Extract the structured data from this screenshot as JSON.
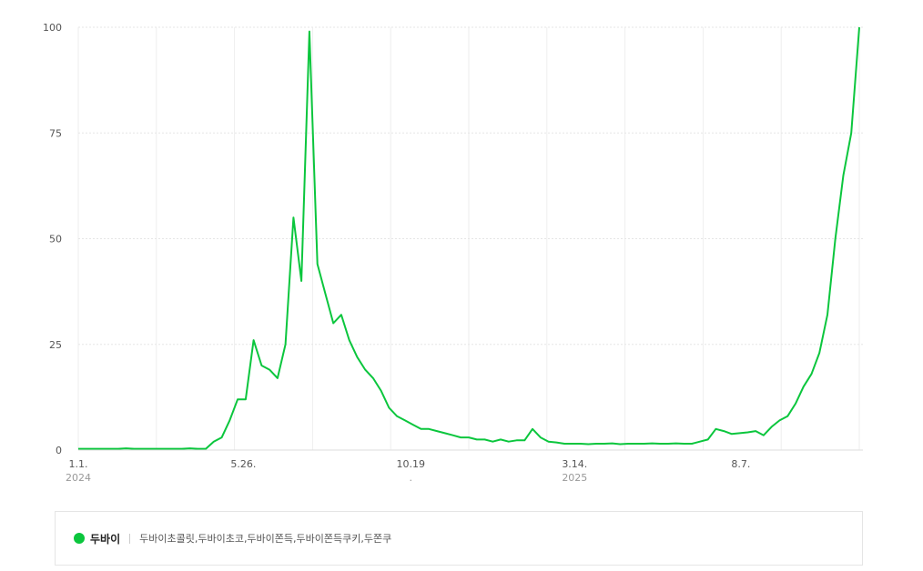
{
  "chart_data": {
    "type": "line",
    "x_start": "2024-01-01",
    "interval_days": 7,
    "ylim": [
      0,
      100
    ],
    "yticks": [
      0,
      25,
      50,
      75,
      100
    ],
    "grid": true,
    "x_ticks": [
      {
        "index": 0,
        "label": "1.1.",
        "year": "2024"
      },
      {
        "index": 20.714,
        "label": "5.26."
      },
      {
        "index": 41.714,
        "label": "10.19",
        "year": "."
      },
      {
        "index": 62.286,
        "label": "3.14.",
        "year": "2025"
      },
      {
        "index": 83.143,
        "label": "8.7."
      }
    ],
    "series": [
      {
        "name": "두바이",
        "color": "#0bc63d",
        "values": [
          0.3,
          0.3,
          0.3,
          0.3,
          0.3,
          0.3,
          0.4,
          0.3,
          0.3,
          0.3,
          0.3,
          0.3,
          0.3,
          0.3,
          0.4,
          0.3,
          0.3,
          2,
          3,
          7,
          12,
          12,
          26,
          20,
          19,
          17,
          25,
          55,
          40,
          99,
          44,
          37,
          30,
          32,
          26,
          22,
          19,
          17,
          14,
          10,
          8,
          7,
          6,
          5,
          5,
          4.5,
          4,
          3.5,
          3,
          3,
          2.5,
          2.5,
          2,
          2.5,
          2,
          2.3,
          2.3,
          5,
          3,
          2,
          1.8,
          1.5,
          1.5,
          1.5,
          1.4,
          1.5,
          1.5,
          1.6,
          1.4,
          1.5,
          1.5,
          1.5,
          1.6,
          1.5,
          1.5,
          1.6,
          1.5,
          1.5,
          2,
          2.5,
          5,
          4.5,
          3.8,
          4,
          4.2,
          4.5,
          3.5,
          5.5,
          7,
          8,
          11,
          15,
          18,
          23,
          32,
          50,
          65,
          75,
          100
        ]
      }
    ]
  },
  "legend": {
    "series_name": "두바이",
    "terms": "두바이초콜릿,두바이초코,두바이쫀득,두바이쫀득쿠키,두쫀쿠",
    "color": "#0bc63d"
  }
}
